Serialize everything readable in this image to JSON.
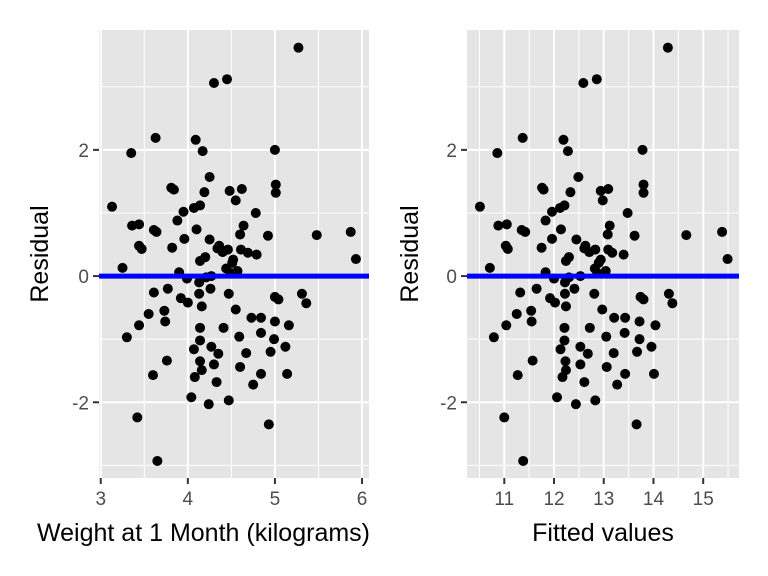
{
  "colors": {
    "panel_background": "#e5e5e5",
    "grid_major": "#ffffff",
    "points": "#000000",
    "reference_line": "#0000ff",
    "tick_text": "#4d4d4d"
  },
  "chart_data": [
    {
      "type": "scatter",
      "xlabel": "Weight at 1 Month (kilograms)",
      "ylabel": "Residual",
      "xlim": [
        2.98,
        6.08
      ],
      "ylim": [
        -3.2,
        3.9
      ],
      "x_ticks": [
        3,
        4,
        5,
        6
      ],
      "y_ticks": [
        -2,
        0,
        2
      ],
      "grid": true,
      "reference_line_y": 0,
      "points": [
        {
          "x": 5.27,
          "y": 3.62
        },
        {
          "x": 4.45,
          "y": 3.12
        },
        {
          "x": 4.3,
          "y": 3.06
        },
        {
          "x": 3.63,
          "y": 2.19
        },
        {
          "x": 4.09,
          "y": 2.16
        },
        {
          "x": 3.35,
          "y": 1.95
        },
        {
          "x": 4.17,
          "y": 1.98
        },
        {
          "x": 5.0,
          "y": 2.0
        },
        {
          "x": 4.25,
          "y": 1.57
        },
        {
          "x": 5.01,
          "y": 1.45
        },
        {
          "x": 4.48,
          "y": 1.35
        },
        {
          "x": 4.62,
          "y": 1.38
        },
        {
          "x": 5.01,
          "y": 1.32
        },
        {
          "x": 3.81,
          "y": 1.4
        },
        {
          "x": 3.84,
          "y": 1.37
        },
        {
          "x": 4.19,
          "y": 1.33
        },
        {
          "x": 4.55,
          "y": 1.2
        },
        {
          "x": 4.14,
          "y": 1.12
        },
        {
          "x": 3.13,
          "y": 1.1
        },
        {
          "x": 4.07,
          "y": 1.08
        },
        {
          "x": 3.95,
          "y": 1.02
        },
        {
          "x": 4.78,
          "y": 1.0
        },
        {
          "x": 3.88,
          "y": 0.88
        },
        {
          "x": 3.36,
          "y": 0.8
        },
        {
          "x": 3.44,
          "y": 0.82
        },
        {
          "x": 3.61,
          "y": 0.73
        },
        {
          "x": 3.64,
          "y": 0.7
        },
        {
          "x": 4.64,
          "y": 0.8
        },
        {
          "x": 4.1,
          "y": 0.74
        },
        {
          "x": 3.96,
          "y": 0.59
        },
        {
          "x": 4.6,
          "y": 0.66
        },
        {
          "x": 5.87,
          "y": 0.7
        },
        {
          "x": 5.48,
          "y": 0.65
        },
        {
          "x": 4.92,
          "y": 0.64
        },
        {
          "x": 4.25,
          "y": 0.58
        },
        {
          "x": 4.36,
          "y": 0.48
        },
        {
          "x": 3.44,
          "y": 0.48
        },
        {
          "x": 3.82,
          "y": 0.45
        },
        {
          "x": 4.34,
          "y": 0.44
        },
        {
          "x": 4.46,
          "y": 0.42
        },
        {
          "x": 4.61,
          "y": 0.42
        },
        {
          "x": 3.47,
          "y": 0.43
        },
        {
          "x": 4.4,
          "y": 0.38
        },
        {
          "x": 4.69,
          "y": 0.37
        },
        {
          "x": 4.79,
          "y": 0.34
        },
        {
          "x": 4.2,
          "y": 0.3
        },
        {
          "x": 4.52,
          "y": 0.26
        },
        {
          "x": 5.93,
          "y": 0.27
        },
        {
          "x": 4.51,
          "y": 0.21
        },
        {
          "x": 4.14,
          "y": 0.24
        },
        {
          "x": 3.25,
          "y": 0.13
        },
        {
          "x": 4.44,
          "y": 0.12
        },
        {
          "x": 4.57,
          "y": 0.08
        },
        {
          "x": 3.9,
          "y": 0.06
        },
        {
          "x": 4.49,
          "y": 0.05
        },
        {
          "x": 3.99,
          "y": -0.04
        },
        {
          "x": 4.21,
          "y": -0.02
        },
        {
          "x": 4.27,
          "y": 0.0
        },
        {
          "x": 4.13,
          "y": -0.1
        },
        {
          "x": 4.26,
          "y": -0.2
        },
        {
          "x": 5.31,
          "y": -0.28
        },
        {
          "x": 3.77,
          "y": -0.2
        },
        {
          "x": 3.61,
          "y": -0.26
        },
        {
          "x": 4.13,
          "y": -0.28
        },
        {
          "x": 4.47,
          "y": -0.28
        },
        {
          "x": 3.92,
          "y": -0.35
        },
        {
          "x": 4.0,
          "y": -0.42
        },
        {
          "x": 5.0,
          "y": -0.33
        },
        {
          "x": 5.04,
          "y": -0.37
        },
        {
          "x": 5.36,
          "y": -0.43
        },
        {
          "x": 4.16,
          "y": -0.48
        },
        {
          "x": 3.73,
          "y": -0.55
        },
        {
          "x": 4.55,
          "y": -0.53
        },
        {
          "x": 3.55,
          "y": -0.6
        },
        {
          "x": 4.73,
          "y": -0.66
        },
        {
          "x": 4.84,
          "y": -0.66
        },
        {
          "x": 5.0,
          "y": -0.72
        },
        {
          "x": 3.74,
          "y": -0.72
        },
        {
          "x": 3.44,
          "y": -0.78
        },
        {
          "x": 5.16,
          "y": -0.78
        },
        {
          "x": 4.14,
          "y": -0.82
        },
        {
          "x": 4.41,
          "y": -0.82
        },
        {
          "x": 4.84,
          "y": -0.9
        },
        {
          "x": 3.3,
          "y": -0.97
        },
        {
          "x": 4.59,
          "y": -0.96
        },
        {
          "x": 4.99,
          "y": -1.0
        },
        {
          "x": 4.14,
          "y": -1.02
        },
        {
          "x": 4.27,
          "y": -1.12
        },
        {
          "x": 4.07,
          "y": -1.16
        },
        {
          "x": 4.95,
          "y": -1.2
        },
        {
          "x": 5.12,
          "y": -1.12
        },
        {
          "x": 4.67,
          "y": -1.22
        },
        {
          "x": 4.35,
          "y": -1.23
        },
        {
          "x": 3.76,
          "y": -1.34
        },
        {
          "x": 4.14,
          "y": -1.35
        },
        {
          "x": 4.3,
          "y": -1.4
        },
        {
          "x": 4.6,
          "y": -1.44
        },
        {
          "x": 4.16,
          "y": -1.49
        },
        {
          "x": 3.6,
          "y": -1.57
        },
        {
          "x": 4.08,
          "y": -1.6
        },
        {
          "x": 4.84,
          "y": -1.55
        },
        {
          "x": 5.14,
          "y": -1.55
        },
        {
          "x": 4.33,
          "y": -1.68
        },
        {
          "x": 4.75,
          "y": -1.72
        },
        {
          "x": 4.04,
          "y": -1.92
        },
        {
          "x": 4.47,
          "y": -1.97
        },
        {
          "x": 4.24,
          "y": -2.03
        },
        {
          "x": 3.42,
          "y": -2.24
        },
        {
          "x": 4.93,
          "y": -2.35
        },
        {
          "x": 3.65,
          "y": -2.93
        }
      ]
    },
    {
      "type": "scatter",
      "xlabel": "Fitted values",
      "ylabel": "Residual",
      "xlim": [
        10.25,
        15.72
      ],
      "ylim": [
        -3.2,
        3.9
      ],
      "x_ticks": [
        11,
        12,
        13,
        14,
        15
      ],
      "y_ticks": [
        -2,
        0,
        2
      ],
      "grid": true,
      "reference_line_y": 0,
      "points": [
        {
          "x": 14.29,
          "y": 3.62
        },
        {
          "x": 12.86,
          "y": 3.12
        },
        {
          "x": 12.59,
          "y": 3.06
        },
        {
          "x": 11.37,
          "y": 2.19
        },
        {
          "x": 12.19,
          "y": 2.16
        },
        {
          "x": 10.86,
          "y": 1.95
        },
        {
          "x": 12.28,
          "y": 1.98
        },
        {
          "x": 13.78,
          "y": 2.0
        },
        {
          "x": 12.49,
          "y": 1.57
        },
        {
          "x": 13.8,
          "y": 1.45
        },
        {
          "x": 12.94,
          "y": 1.35
        },
        {
          "x": 13.09,
          "y": 1.38
        },
        {
          "x": 13.8,
          "y": 1.32
        },
        {
          "x": 11.76,
          "y": 1.4
        },
        {
          "x": 11.79,
          "y": 1.37
        },
        {
          "x": 12.33,
          "y": 1.33
        },
        {
          "x": 12.98,
          "y": 1.2
        },
        {
          "x": 12.21,
          "y": 1.12
        },
        {
          "x": 10.51,
          "y": 1.1
        },
        {
          "x": 12.12,
          "y": 1.08
        },
        {
          "x": 11.96,
          "y": 1.02
        },
        {
          "x": 13.48,
          "y": 1.0
        },
        {
          "x": 11.83,
          "y": 0.88
        },
        {
          "x": 10.88,
          "y": 0.8
        },
        {
          "x": 11.05,
          "y": 0.82
        },
        {
          "x": 11.35,
          "y": 0.73
        },
        {
          "x": 11.42,
          "y": 0.7
        },
        {
          "x": 13.12,
          "y": 0.8
        },
        {
          "x": 12.14,
          "y": 0.74
        },
        {
          "x": 11.96,
          "y": 0.59
        },
        {
          "x": 13.08,
          "y": 0.66
        },
        {
          "x": 15.38,
          "y": 0.7
        },
        {
          "x": 14.66,
          "y": 0.65
        },
        {
          "x": 13.62,
          "y": 0.64
        },
        {
          "x": 12.45,
          "y": 0.58
        },
        {
          "x": 12.63,
          "y": 0.48
        },
        {
          "x": 11.03,
          "y": 0.48
        },
        {
          "x": 11.75,
          "y": 0.45
        },
        {
          "x": 12.61,
          "y": 0.44
        },
        {
          "x": 12.83,
          "y": 0.42
        },
        {
          "x": 13.09,
          "y": 0.42
        },
        {
          "x": 11.07,
          "y": 0.43
        },
        {
          "x": 12.71,
          "y": 0.38
        },
        {
          "x": 13.17,
          "y": 0.37
        },
        {
          "x": 13.4,
          "y": 0.34
        },
        {
          "x": 12.3,
          "y": 0.3
        },
        {
          "x": 12.94,
          "y": 0.26
        },
        {
          "x": 15.49,
          "y": 0.27
        },
        {
          "x": 12.9,
          "y": 0.21
        },
        {
          "x": 12.24,
          "y": 0.24
        },
        {
          "x": 10.71,
          "y": 0.13
        },
        {
          "x": 12.82,
          "y": 0.12
        },
        {
          "x": 13.04,
          "y": 0.08
        },
        {
          "x": 11.83,
          "y": 0.06
        },
        {
          "x": 12.87,
          "y": 0.05
        },
        {
          "x": 12.0,
          "y": -0.04
        },
        {
          "x": 12.3,
          "y": -0.02
        },
        {
          "x": 12.53,
          "y": 0.0
        },
        {
          "x": 12.22,
          "y": -0.1
        },
        {
          "x": 12.41,
          "y": -0.2
        },
        {
          "x": 14.31,
          "y": -0.28
        },
        {
          "x": 11.65,
          "y": -0.2
        },
        {
          "x": 11.32,
          "y": -0.26
        },
        {
          "x": 12.22,
          "y": -0.28
        },
        {
          "x": 12.81,
          "y": -0.28
        },
        {
          "x": 11.92,
          "y": -0.35
        },
        {
          "x": 12.02,
          "y": -0.42
        },
        {
          "x": 13.74,
          "y": -0.33
        },
        {
          "x": 13.8,
          "y": -0.37
        },
        {
          "x": 14.38,
          "y": -0.43
        },
        {
          "x": 12.24,
          "y": -0.48
        },
        {
          "x": 11.54,
          "y": -0.55
        },
        {
          "x": 12.97,
          "y": -0.53
        },
        {
          "x": 11.25,
          "y": -0.6
        },
        {
          "x": 13.21,
          "y": -0.66
        },
        {
          "x": 13.43,
          "y": -0.66
        },
        {
          "x": 13.72,
          "y": -0.72
        },
        {
          "x": 11.55,
          "y": -0.72
        },
        {
          "x": 11.04,
          "y": -0.78
        },
        {
          "x": 14.04,
          "y": -0.78
        },
        {
          "x": 12.21,
          "y": -0.82
        },
        {
          "x": 12.72,
          "y": -0.82
        },
        {
          "x": 13.42,
          "y": -0.9
        },
        {
          "x": 10.79,
          "y": -0.97
        },
        {
          "x": 13.05,
          "y": -0.96
        },
        {
          "x": 13.72,
          "y": -1.0
        },
        {
          "x": 12.21,
          "y": -1.02
        },
        {
          "x": 12.53,
          "y": -1.12
        },
        {
          "x": 12.13,
          "y": -1.16
        },
        {
          "x": 13.67,
          "y": -1.2
        },
        {
          "x": 13.96,
          "y": -1.12
        },
        {
          "x": 13.2,
          "y": -1.22
        },
        {
          "x": 12.68,
          "y": -1.23
        },
        {
          "x": 11.57,
          "y": -1.34
        },
        {
          "x": 12.23,
          "y": -1.35
        },
        {
          "x": 12.53,
          "y": -1.4
        },
        {
          "x": 13.06,
          "y": -1.44
        },
        {
          "x": 12.24,
          "y": -1.49
        },
        {
          "x": 11.27,
          "y": -1.57
        },
        {
          "x": 12.17,
          "y": -1.6
        },
        {
          "x": 13.43,
          "y": -1.55
        },
        {
          "x": 14.01,
          "y": -1.55
        },
        {
          "x": 12.61,
          "y": -1.68
        },
        {
          "x": 13.27,
          "y": -1.72
        },
        {
          "x": 12.06,
          "y": -1.92
        },
        {
          "x": 12.83,
          "y": -1.97
        },
        {
          "x": 12.44,
          "y": -2.03
        },
        {
          "x": 11.0,
          "y": -2.24
        },
        {
          "x": 13.66,
          "y": -2.35
        },
        {
          "x": 11.38,
          "y": -2.93
        }
      ]
    }
  ]
}
